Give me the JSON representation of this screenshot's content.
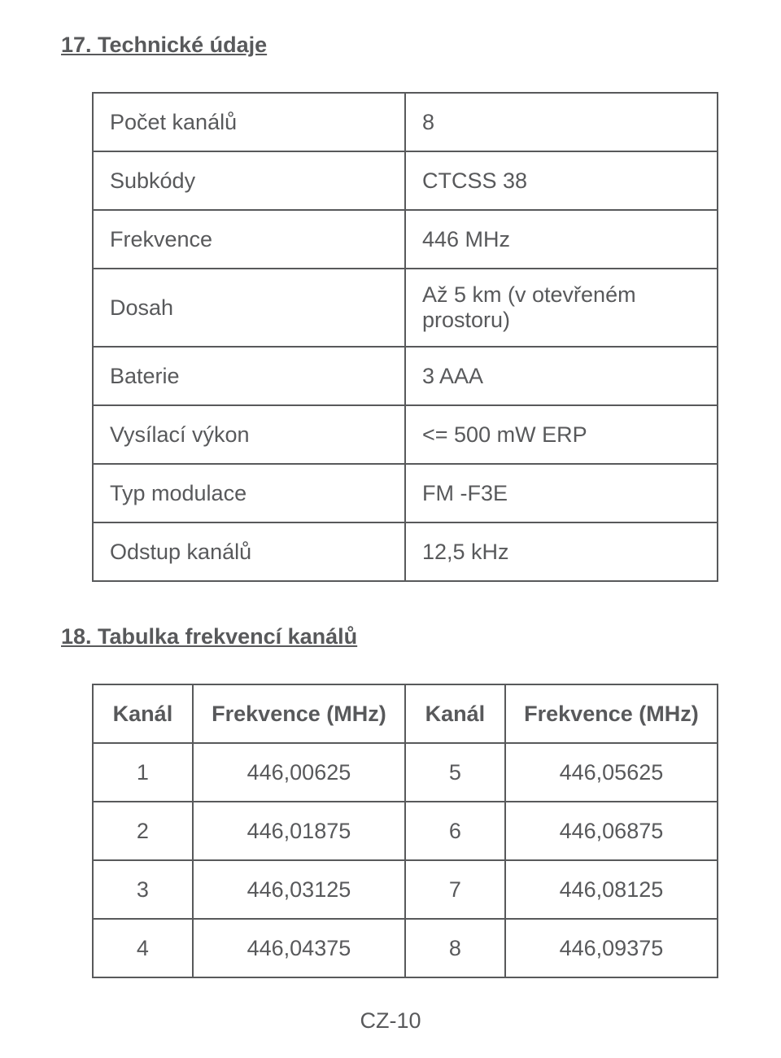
{
  "colors": {
    "text": "#58595b",
    "border": "#58595b",
    "background": "#ffffff"
  },
  "typography": {
    "font_family": "Arial, Helvetica, sans-serif",
    "heading_fontsize": 27,
    "cell_fontsize": 27,
    "heading_weight": "bold"
  },
  "section17": {
    "title": "17.  Technické údaje",
    "table": {
      "type": "table",
      "border_color": "#58595b",
      "border_width": 2,
      "cell_padding": "16px 20px",
      "rows": [
        {
          "label": "Počet kanálů",
          "value": "8"
        },
        {
          "label": "Subkódy",
          "value": "CTCSS 38"
        },
        {
          "label": "Frekvence",
          "value": "446 MHz"
        },
        {
          "label": "Dosah",
          "value": "Až 5 km (v otevřeném prostoru)"
        },
        {
          "label": "Baterie",
          "value": "3 AAA"
        },
        {
          "label": "Vysílací výkon",
          "value": "<= 500 mW ERP"
        },
        {
          "label": "Typ modulace",
          "value": "FM -F3E"
        },
        {
          "label": "Odstup kanálů",
          "value": "12,5 kHz"
        }
      ]
    }
  },
  "section18": {
    "title": "18.  Tabulka frekvencí kanálů",
    "table": {
      "type": "table",
      "border_color": "#58595b",
      "border_width": 2,
      "col_widths_pct": [
        16,
        34,
        16,
        34
      ],
      "headers": [
        "Kanál",
        "Frekvence (MHz)",
        "Kanál",
        "Frekvence (MHz)"
      ],
      "rows": [
        {
          "c1": "1",
          "f1": "446,00625",
          "c2": "5",
          "f2": "446,05625"
        },
        {
          "c1": "2",
          "f1": "446,01875",
          "c2": "6",
          "f2": "446,06875"
        },
        {
          "c1": "3",
          "f1": "446,03125",
          "c2": "7",
          "f2": "446,08125"
        },
        {
          "c1": "4",
          "f1": "446,04375",
          "c2": "8",
          "f2": "446,09375"
        }
      ]
    }
  },
  "page_number": "CZ-10"
}
